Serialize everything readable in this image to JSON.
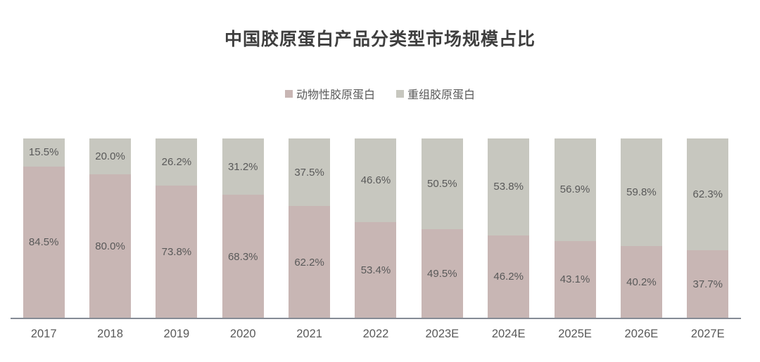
{
  "chart_data": {
    "type": "bar",
    "stacked": true,
    "orientation": "vertical",
    "title": "中国胶原蛋白产品分类型市场规模占比",
    "legend_position": "top",
    "grid": false,
    "y_axis_visible": false,
    "ylim": [
      0,
      100
    ],
    "unit": "%",
    "categories": [
      "2017",
      "2018",
      "2019",
      "2020",
      "2021",
      "2022",
      "2023E",
      "2024E",
      "2025E",
      "2026E",
      "2027E"
    ],
    "series": [
      {
        "name": "动物性胶原蛋白",
        "position": "bottom",
        "color": "#c8b6b4",
        "values": [
          84.5,
          80.0,
          73.8,
          68.3,
          62.2,
          53.4,
          49.5,
          46.2,
          43.1,
          40.2,
          37.7
        ],
        "labels": [
          "84.5%",
          "80.0%",
          "73.8%",
          "68.3%",
          "62.2%",
          "53.4%",
          "49.5%",
          "46.2%",
          "43.1%",
          "40.2%",
          "37.7%"
        ]
      },
      {
        "name": "重组胶原蛋白",
        "position": "top",
        "color": "#c7c7bf",
        "values": [
          15.5,
          20.0,
          26.2,
          31.2,
          37.5,
          46.6,
          50.5,
          53.8,
          56.9,
          59.8,
          62.3
        ],
        "labels": [
          "15.5%",
          "20.0%",
          "26.2%",
          "31.2%",
          "37.5%",
          "46.6%",
          "50.5%",
          "53.8%",
          "56.9%",
          "59.8%",
          "62.3%"
        ]
      }
    ],
    "colors": {
      "title_text": "#3f3f3f",
      "data_label_text": "#595959",
      "axis_label_text": "#595959",
      "axis_line": "#858b95",
      "background": "#ffffff"
    }
  }
}
